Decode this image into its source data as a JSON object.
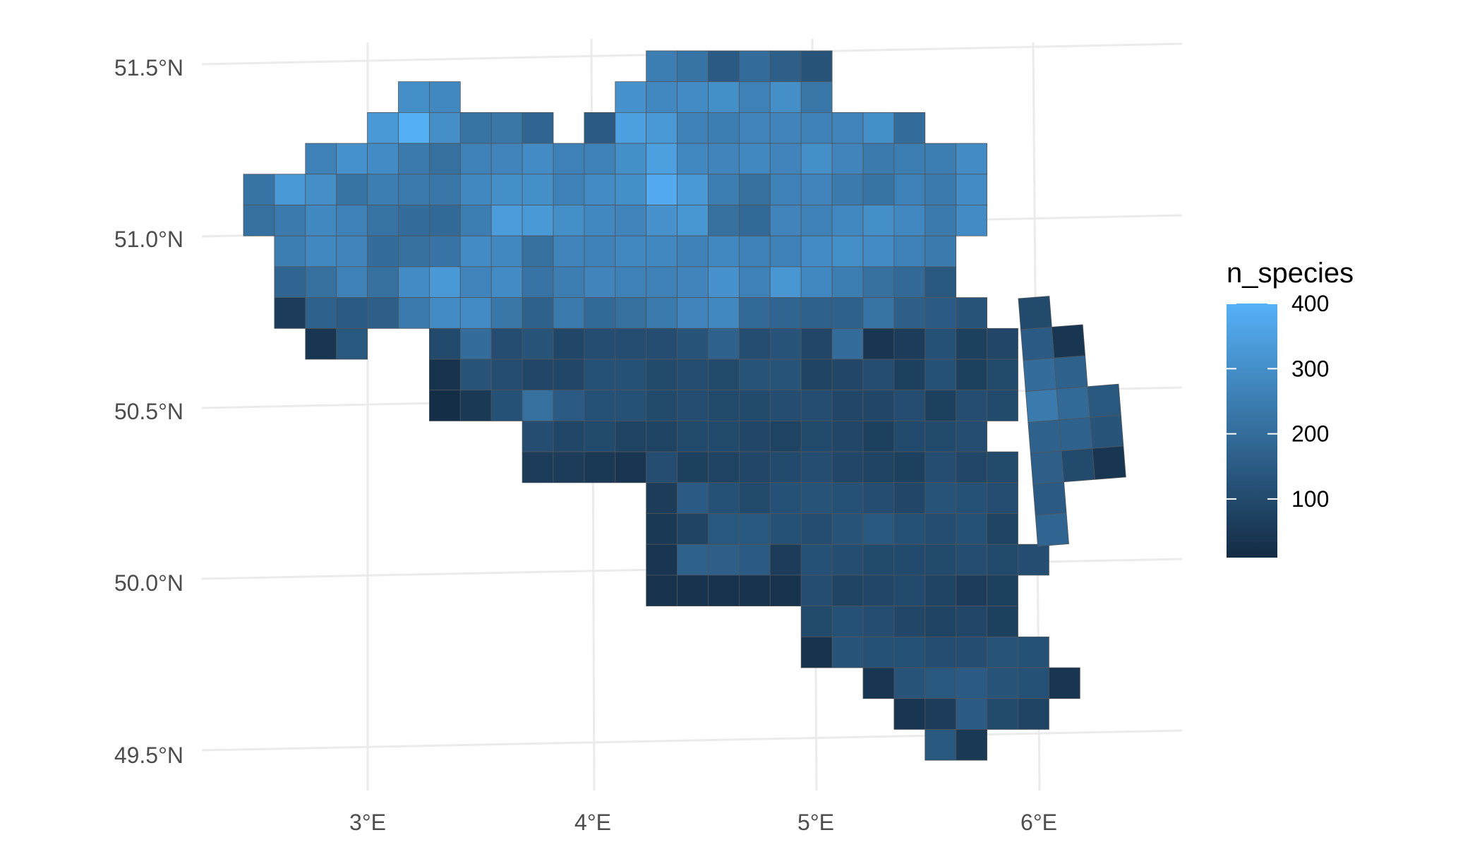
{
  "chart_data": {
    "type": "heatmap",
    "title": "",
    "xlabel": "",
    "ylabel": "",
    "x_ticks": [
      "3°E",
      "4°E",
      "5°E",
      "6°E"
    ],
    "y_ticks": [
      "51.5°N",
      "51.0°N",
      "50.5°N",
      "50.0°N",
      "49.5°N"
    ],
    "grid": true,
    "legend": {
      "title": "n_species",
      "position": "right",
      "ticks": [
        "100",
        "200",
        "300",
        "400"
      ],
      "tick_values": [
        100,
        200,
        300,
        400
      ],
      "range": [
        10,
        400
      ],
      "color_low": "#132b43",
      "color_high": "#56b1f7"
    },
    "grid_cells": {
      "description_of_axes": "column index = column of the UTM grid (west to east), row index = row (north to south)",
      "rows": [
        {
          "row": 0,
          "start_col": 13,
          "values": [
            250,
            220,
            150,
            200,
            160,
            130
          ]
        },
        {
          "row": 1,
          "start_col": 5,
          "values": [
            300,
            280
          ]
        },
        {
          "row": 1,
          "start_col": 12,
          "values": [
            310,
            280,
            290,
            300,
            260,
            300,
            230
          ]
        },
        {
          "row": 2,
          "start_col": 4,
          "values": [
            330,
            390,
            300,
            220,
            230,
            180
          ]
        },
        {
          "row": 2,
          "start_col": 11,
          "values": [
            150,
            350,
            330,
            260,
            250,
            270,
            270,
            260,
            270,
            300,
            200
          ]
        },
        {
          "row": 3,
          "start_col": 2,
          "values": [
            260,
            310,
            290,
            240,
            210,
            260,
            270,
            290,
            260,
            260,
            300,
            350,
            280,
            270,
            280,
            270,
            300,
            270,
            240,
            250,
            250,
            290
          ]
        },
        {
          "row": 4,
          "start_col": 0,
          "values": [
            220,
            330,
            300,
            220,
            250,
            240,
            230,
            280,
            300,
            300,
            260,
            290,
            300,
            380,
            330,
            250,
            210,
            260,
            270,
            240,
            220,
            260,
            240,
            290
          ]
        },
        {
          "row": 5,
          "start_col": 0,
          "values": [
            210,
            240,
            280,
            260,
            220,
            200,
            190,
            250,
            340,
            330,
            300,
            280,
            270,
            310,
            320,
            210,
            190,
            270,
            260,
            280,
            300,
            280,
            240,
            290
          ]
        },
        {
          "row": 6,
          "start_col": 1,
          "values": [
            250,
            280,
            270,
            200,
            210,
            220,
            290,
            280,
            210,
            270,
            260,
            280,
            280,
            260,
            280,
            260,
            260,
            290,
            300,
            290,
            260,
            240
          ]
        },
        {
          "row": 7,
          "start_col": 1,
          "values": [
            180,
            210,
            260,
            210,
            290,
            330,
            270,
            290,
            220,
            250,
            270,
            260,
            260,
            270,
            310,
            260,
            320,
            280,
            250,
            210,
            190,
            140
          ]
        },
        {
          "row": 8,
          "start_col": 1,
          "values": [
            60,
            170,
            150,
            160,
            240,
            290,
            290,
            230,
            170,
            240,
            190,
            210,
            240,
            270,
            280,
            190,
            180,
            170,
            170,
            220,
            160,
            150,
            130
          ]
        },
        {
          "row": 9,
          "start_col": 2,
          "values": [
            40,
            140
          ]
        },
        {
          "row": 9,
          "start_col": 6,
          "values": [
            100,
            200,
            110,
            130,
            90,
            110,
            110,
            110,
            130,
            170,
            110,
            130,
            90,
            200,
            40,
            60,
            120,
            70,
            90
          ]
        },
        {
          "row": 10,
          "start_col": 6,
          "values": [
            30,
            130,
            110,
            90,
            90,
            120,
            120,
            100,
            110,
            100,
            130,
            130,
            80,
            90,
            110,
            70,
            120,
            70,
            100
          ]
        },
        {
          "row": 11,
          "start_col": 6,
          "values": [
            20,
            50,
            120,
            210,
            150,
            120,
            120,
            100,
            110,
            100,
            100,
            110,
            110,
            90,
            90,
            110,
            70,
            110,
            100
          ]
        },
        {
          "row": 12,
          "start_col": 9,
          "values": [
            110,
            90,
            100,
            80,
            80,
            100,
            100,
            90,
            80,
            100,
            90,
            70,
            100,
            100,
            110
          ]
        },
        {
          "row": 13,
          "start_col": 9,
          "values": [
            60,
            60,
            50,
            40,
            110,
            70,
            80,
            90,
            100,
            110,
            90,
            80,
            70,
            110,
            90,
            100
          ]
        },
        {
          "row": 14,
          "start_col": 13,
          "values": [
            60,
            150,
            120,
            100,
            120,
            130,
            120,
            110,
            90,
            130,
            120,
            110
          ]
        },
        {
          "row": 15,
          "start_col": 13,
          "values": [
            50,
            80,
            140,
            140,
            120,
            110,
            130,
            140,
            120,
            110,
            120,
            80
          ]
        },
        {
          "row": 16,
          "start_col": 13,
          "values": [
            40,
            170,
            160,
            150,
            60,
            120,
            110,
            100,
            100,
            100,
            110,
            100,
            110
          ]
        },
        {
          "row": 17,
          "start_col": 13,
          "values": [
            30,
            30,
            30,
            30,
            30,
            110,
            80,
            90,
            100,
            80,
            60,
            70
          ]
        },
        {
          "row": 18,
          "start_col": 18,
          "values": [
            100,
            120,
            110,
            90,
            80,
            90,
            70
          ]
        },
        {
          "row": 19,
          "start_col": 18,
          "values": [
            30,
            130,
            120,
            120,
            110,
            110,
            130,
            120
          ]
        },
        {
          "row": 20,
          "start_col": 20,
          "values": [
            40,
            130,
            140,
            150,
            130,
            120,
            40
          ]
        },
        {
          "row": 21,
          "start_col": 21,
          "values": [
            40,
            60,
            150,
            100,
            80
          ]
        },
        {
          "row": 22,
          "start_col": 22,
          "values": [
            140,
            50
          ]
        }
      ],
      "east_zone": {
        "description_of_axes": "cells of the adjacent rotated grid zone, column index west to east, row index north to south",
        "cells": [
          {
            "col": 0,
            "row": 0,
            "value": 100
          },
          {
            "col": 1,
            "row": 1,
            "value": 40
          },
          {
            "col": 0,
            "row": 1,
            "value": 150
          },
          {
            "col": 0,
            "row": 2,
            "value": 200
          },
          {
            "col": 1,
            "row": 2,
            "value": 170
          },
          {
            "col": 0,
            "row": 3,
            "value": 240
          },
          {
            "col": 1,
            "row": 3,
            "value": 190
          },
          {
            "col": 2,
            "row": 3,
            "value": 140
          },
          {
            "col": 0,
            "row": 4,
            "value": 170
          },
          {
            "col": 1,
            "row": 4,
            "value": 170
          },
          {
            "col": 2,
            "row": 4,
            "value": 130
          },
          {
            "col": 0,
            "row": 5,
            "value": 160
          },
          {
            "col": 1,
            "row": 5,
            "value": 100
          },
          {
            "col": 2,
            "row": 5,
            "value": 40
          },
          {
            "col": 0,
            "row": 6,
            "value": 150
          },
          {
            "col": 0,
            "row": 7,
            "value": 180
          }
        ]
      }
    }
  }
}
